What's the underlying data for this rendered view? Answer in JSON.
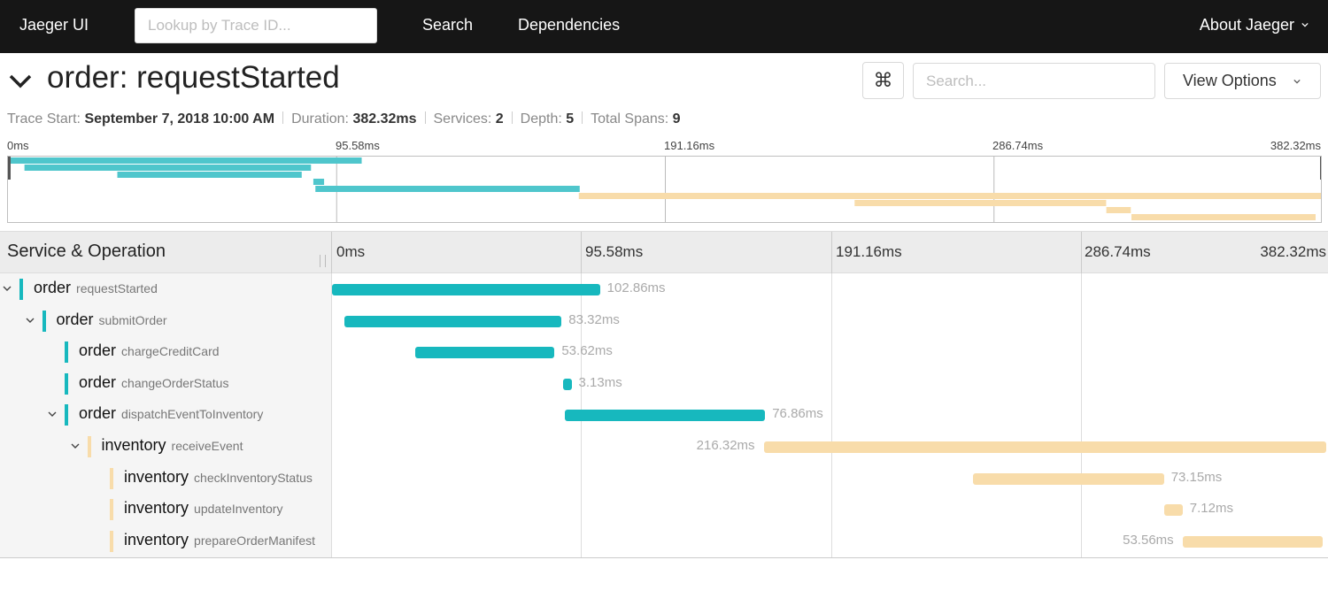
{
  "nav": {
    "brand": "Jaeger UI",
    "lookup_placeholder": "Lookup by Trace ID...",
    "search": "Search",
    "dependencies": "Dependencies",
    "about": "About Jaeger"
  },
  "trace": {
    "title": "order: requestStarted",
    "keyboard_symbol": "⌘",
    "search_placeholder": "Search...",
    "view_options": "View Options",
    "meta": {
      "trace_start_label": "Trace Start:",
      "trace_start_value": "September 7, 2018 10:00 AM",
      "duration_label": "Duration:",
      "duration_value": "382.32ms",
      "services_label": "Services:",
      "services_value": "2",
      "depth_label": "Depth:",
      "depth_value": "5",
      "total_spans_label": "Total Spans:",
      "total_spans_value": "9"
    }
  },
  "colors": {
    "order": "#17b8be",
    "inventory": "#f8dcaa"
  },
  "timeline": {
    "header_title": "Service & Operation",
    "total_ms": 382.32,
    "ticks": [
      "0ms",
      "95.58ms",
      "191.16ms",
      "286.74ms",
      "382.32ms"
    ]
  },
  "spans": [
    {
      "service": "order",
      "operation": "requestStarted",
      "depth": 0,
      "expandable": true,
      "start_ms": 0,
      "duration_ms": 102.86,
      "duration_label": "102.86ms"
    },
    {
      "service": "order",
      "operation": "submitOrder",
      "depth": 1,
      "expandable": true,
      "start_ms": 4.8,
      "duration_ms": 83.32,
      "duration_label": "83.32ms"
    },
    {
      "service": "order",
      "operation": "chargeCreditCard",
      "depth": 2,
      "expandable": false,
      "start_ms": 31.8,
      "duration_ms": 53.62,
      "duration_label": "53.62ms"
    },
    {
      "service": "order",
      "operation": "changeOrderStatus",
      "depth": 2,
      "expandable": false,
      "start_ms": 88.8,
      "duration_ms": 3.13,
      "duration_label": "3.13ms"
    },
    {
      "service": "order",
      "operation": "dispatchEventToInventory",
      "depth": 2,
      "expandable": true,
      "start_ms": 89.4,
      "duration_ms": 76.86,
      "duration_label": "76.86ms"
    },
    {
      "service": "inventory",
      "operation": "receiveEvent",
      "depth": 3,
      "expandable": true,
      "start_ms": 166.0,
      "duration_ms": 216.32,
      "duration_label": "216.32ms"
    },
    {
      "service": "inventory",
      "operation": "checkInventoryStatus",
      "depth": 4,
      "expandable": false,
      "start_ms": 246.2,
      "duration_ms": 73.15,
      "duration_label": "73.15ms"
    },
    {
      "service": "inventory",
      "operation": "updateInventory",
      "depth": 4,
      "expandable": false,
      "start_ms": 319.4,
      "duration_ms": 7.12,
      "duration_label": "7.12ms"
    },
    {
      "service": "inventory",
      "operation": "prepareOrderManifest",
      "depth": 4,
      "expandable": false,
      "start_ms": 326.7,
      "duration_ms": 53.56,
      "duration_label": "53.56ms"
    }
  ]
}
